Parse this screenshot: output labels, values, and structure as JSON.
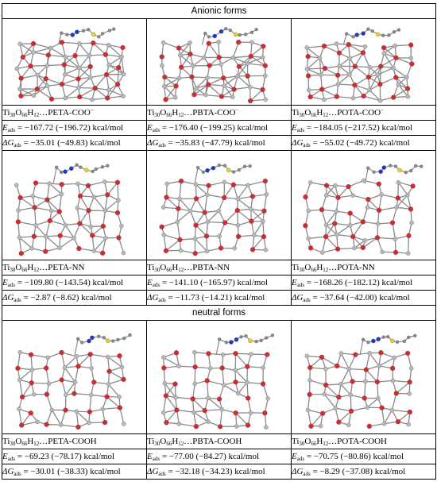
{
  "sections": {
    "anionic": "Anionic forms",
    "neutral": "neutral forms"
  },
  "labels": {
    "E": "E",
    "ads": "ads",
    "dG": "ΔG",
    "unit": "kcal/mol",
    "sep": " = "
  },
  "rows": [
    {
      "systems": [
        {
          "name_prefix": "Ti",
          "n1": "30",
          "o": "O",
          "n2": "66",
          "h": "H",
          "n3": "12",
          "suffix": "…PETA-COO",
          "charge": "−",
          "E_value": "−167.72 (−196.72)",
          "G_value": "−35.01 (−49.83)"
        },
        {
          "name_prefix": "Ti",
          "n1": "30",
          "o": "O",
          "n2": "66",
          "h": "H",
          "n3": "12",
          "suffix": "…PBTA-COO",
          "charge": "−",
          "E_value": "−176.40 (−199.25)",
          "G_value": "−35.83 (−47.79)"
        },
        {
          "name_prefix": "Ti",
          "n1": "30",
          "o": "O",
          "n2": "66",
          "h": "H",
          "n3": "12",
          "suffix": "…POTA-COO",
          "charge": "−",
          "E_value": "−184.05 (−217.52)",
          "G_value": "−55.02 (−49.72)"
        }
      ]
    },
    {
      "systems": [
        {
          "name_prefix": "Ti",
          "n1": "30",
          "o": "O",
          "n2": "66",
          "h": "H",
          "n3": "12",
          "suffix": "…PETA-NN",
          "charge": "",
          "E_value": "−109.80 (−143.54)",
          "G_value": "−2.87 (−8.62)"
        },
        {
          "name_prefix": "Ti",
          "n1": "30",
          "o": "O",
          "n2": "66",
          "h": "H",
          "n3": "12",
          "suffix": "…PBTA-NN",
          "charge": "",
          "E_value": "−141.10 (−165.97)",
          "G_value": "−11.73 (−14.21)"
        },
        {
          "name_prefix": "Ti",
          "n1": "30",
          "o": "O",
          "n2": "66",
          "h": "H",
          "n3": "12",
          "suffix": "…POTA-NN",
          "charge": "",
          "E_value": "−168.26 (−182.12)",
          "G_value": "−37.64 (−42.00)"
        }
      ]
    },
    {
      "systems": [
        {
          "name_prefix": "Ti",
          "n1": "30",
          "o": "O",
          "n2": "66",
          "h": "H",
          "n3": "12",
          "suffix": "…PETA-COOH",
          "charge": "",
          "E_value": "−69.23 (−78.17)",
          "G_value": "−30.01 (−38.33)"
        },
        {
          "name_prefix": "Ti",
          "n1": "30",
          "o": "O",
          "n2": "66",
          "h": "H",
          "n3": "12",
          "suffix": "…PBTA-COOH",
          "charge": "",
          "E_value": "−77.00 (−84.27)",
          "G_value": "−32.18 (−34.23)"
        },
        {
          "name_prefix": "Ti",
          "n1": "30",
          "o": "O",
          "n2": "66",
          "h": "H",
          "n3": "12",
          "suffix": "…POTA-COOH",
          "charge": "",
          "E_value": "−70.75 (−80.86)",
          "G_value": "−8.29 (−37.08)"
        }
      ]
    }
  ],
  "colors": {
    "oxygen": "#d42a2a",
    "titanium": "#b8b8b8",
    "nitrogen": "#2038c8",
    "sulfur": "#e6d21e",
    "hydrogen": "#eeeeee",
    "bond": "#8a8a8a"
  }
}
